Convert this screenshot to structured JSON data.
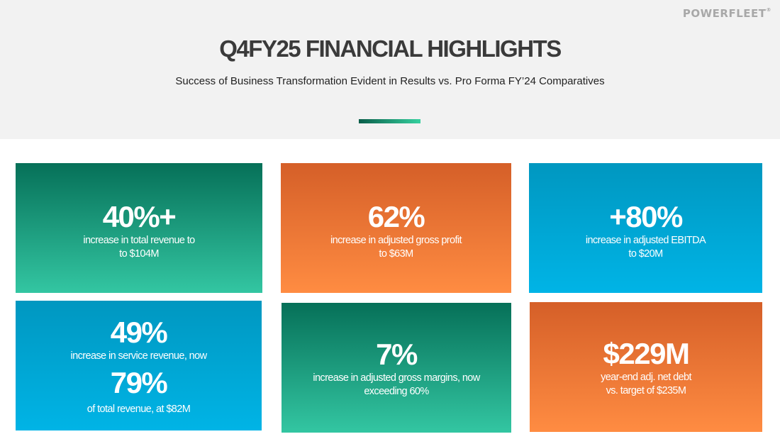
{
  "header": {
    "logo": "POWERFLEET",
    "logo_mark": "®",
    "title": "Q4FY25 FINANCIAL HIGHLIGHTS",
    "subtitle": "Success of Business Transformation Evident in Results vs. Pro Forma FY’24 Comparatives"
  },
  "colors": {
    "green_top": "#067058",
    "green_bottom": "#33c6a2",
    "orange_top": "#d55f28",
    "orange_bottom": "#ff8c42",
    "blue_top": "#0097c0",
    "blue_bottom": "#00b4e6"
  },
  "cards": [
    {
      "value": "40%+",
      "text": "increase in total revenue to\nto $104M"
    },
    {
      "value": "62%",
      "text": "increase in adjusted gross profit\nto $63M"
    },
    {
      "value": "+80%",
      "text": "increase in adjusted EBITDA\nto $20M"
    },
    {
      "value": "49%",
      "text": "increase in service revenue, now",
      "value2": "79%",
      "text2": "of total revenue, at $82M"
    },
    {
      "value": "7%",
      "text": "increase in adjusted gross margins, now\nexceeding 60%"
    },
    {
      "value": "$229M",
      "text": "year-end adj. net debt\nvs. target of $235M"
    }
  ]
}
